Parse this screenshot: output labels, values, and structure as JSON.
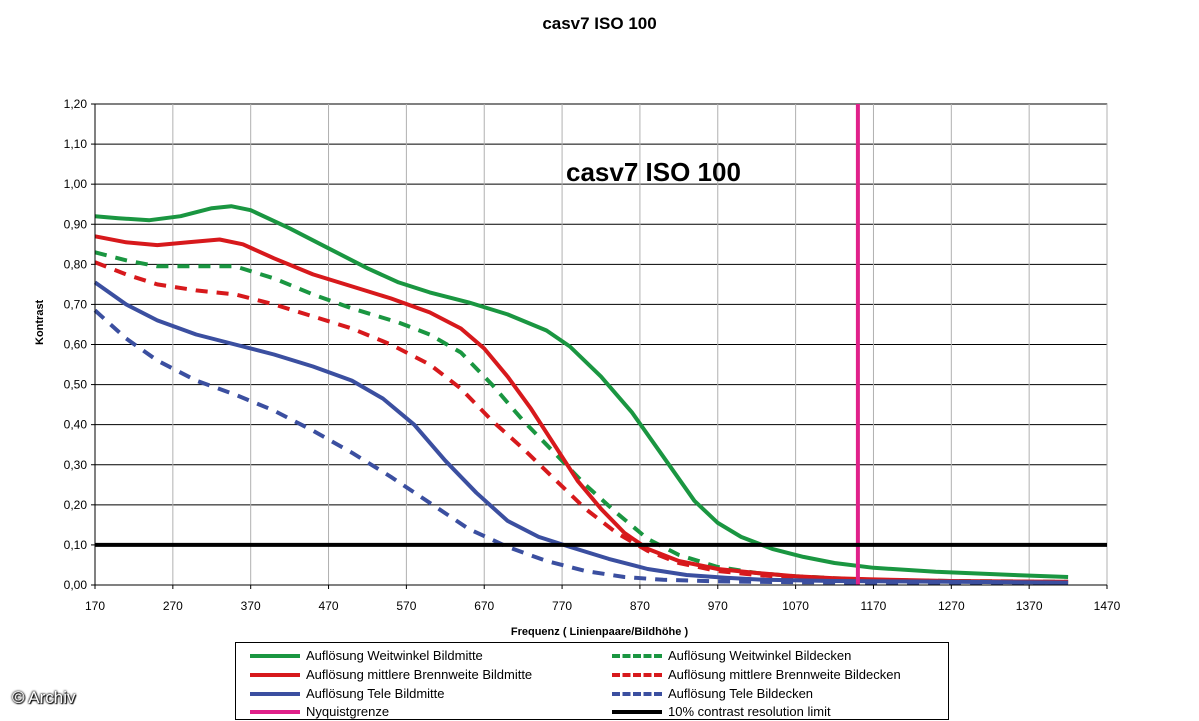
{
  "page": {
    "title": "casv7 ISO 100",
    "copyright": "© Archiv"
  },
  "chart_data": {
    "type": "line",
    "title": "casv7 ISO 100",
    "subtitle": "casv7 ISO 100",
    "xlabel": "Frequenz ( Linienpaare/Bildhöhe )",
    "ylabel": "Kontrast",
    "xlim": [
      170,
      1470
    ],
    "ylim": [
      0,
      1.2
    ],
    "xticks": [
      "170",
      "270",
      "370",
      "470",
      "570",
      "670",
      "770",
      "870",
      "970",
      "1070",
      "1170",
      "1270",
      "1370",
      "1470"
    ],
    "yticks": [
      "0,00",
      "0,10",
      "0,20",
      "0,30",
      "0,40",
      "0,50",
      "0,60",
      "0,70",
      "0,80",
      "0,90",
      "1,00",
      "1,10",
      "1,20"
    ],
    "grid": true,
    "legend_position": "bottom",
    "series": [
      {
        "name": "Auflösung Weitwinkel Bildmitte",
        "color": "#1a9641",
        "dash": "solid",
        "points": [
          [
            170,
            0.92
          ],
          [
            200,
            0.915
          ],
          [
            240,
            0.91
          ],
          [
            280,
            0.92
          ],
          [
            320,
            0.94
          ],
          [
            345,
            0.945
          ],
          [
            370,
            0.935
          ],
          [
            420,
            0.89
          ],
          [
            470,
            0.84
          ],
          [
            520,
            0.79
          ],
          [
            560,
            0.755
          ],
          [
            600,
            0.73
          ],
          [
            650,
            0.705
          ],
          [
            700,
            0.675
          ],
          [
            750,
            0.635
          ],
          [
            780,
            0.595
          ],
          [
            820,
            0.52
          ],
          [
            860,
            0.43
          ],
          [
            900,
            0.32
          ],
          [
            940,
            0.21
          ],
          [
            970,
            0.155
          ],
          [
            1000,
            0.12
          ],
          [
            1040,
            0.09
          ],
          [
            1080,
            0.07
          ],
          [
            1120,
            0.055
          ],
          [
            1170,
            0.043
          ],
          [
            1250,
            0.033
          ],
          [
            1350,
            0.025
          ],
          [
            1420,
            0.02
          ]
        ]
      },
      {
        "name": "Auflösung Weitwinkel Bildecken",
        "color": "#1a9641",
        "dash": "dashed",
        "points": [
          [
            170,
            0.83
          ],
          [
            210,
            0.81
          ],
          [
            250,
            0.795
          ],
          [
            300,
            0.795
          ],
          [
            350,
            0.795
          ],
          [
            400,
            0.765
          ],
          [
            450,
            0.725
          ],
          [
            500,
            0.69
          ],
          [
            560,
            0.655
          ],
          [
            600,
            0.625
          ],
          [
            640,
            0.58
          ],
          [
            680,
            0.5
          ],
          [
            720,
            0.41
          ],
          [
            760,
            0.33
          ],
          [
            800,
            0.25
          ],
          [
            840,
            0.18
          ],
          [
            880,
            0.115
          ],
          [
            920,
            0.075
          ],
          [
            970,
            0.045
          ],
          [
            1020,
            0.03
          ],
          [
            1070,
            0.022
          ],
          [
            1120,
            0.017
          ],
          [
            1170,
            0.013
          ],
          [
            1270,
            0.01
          ],
          [
            1420,
            0.008
          ]
        ]
      },
      {
        "name": "Auflösung mittlere Brennweite Bildmitte",
        "color": "#d7191c",
        "dash": "solid",
        "points": [
          [
            170,
            0.87
          ],
          [
            210,
            0.855
          ],
          [
            250,
            0.848
          ],
          [
            290,
            0.855
          ],
          [
            330,
            0.862
          ],
          [
            360,
            0.85
          ],
          [
            400,
            0.815
          ],
          [
            450,
            0.775
          ],
          [
            500,
            0.745
          ],
          [
            550,
            0.715
          ],
          [
            600,
            0.68
          ],
          [
            640,
            0.64
          ],
          [
            670,
            0.59
          ],
          [
            700,
            0.52
          ],
          [
            730,
            0.44
          ],
          [
            760,
            0.35
          ],
          [
            790,
            0.26
          ],
          [
            820,
            0.19
          ],
          [
            850,
            0.13
          ],
          [
            880,
            0.09
          ],
          [
            920,
            0.06
          ],
          [
            970,
            0.04
          ],
          [
            1020,
            0.03
          ],
          [
            1070,
            0.022
          ],
          [
            1120,
            0.017
          ],
          [
            1170,
            0.014
          ],
          [
            1270,
            0.01
          ],
          [
            1420,
            0.008
          ]
        ]
      },
      {
        "name": "Auflösung mittlere Brennweite Bildecken",
        "color": "#d7191c",
        "dash": "dashed",
        "points": [
          [
            170,
            0.805
          ],
          [
            210,
            0.775
          ],
          [
            250,
            0.75
          ],
          [
            300,
            0.735
          ],
          [
            350,
            0.725
          ],
          [
            400,
            0.7
          ],
          [
            450,
            0.67
          ],
          [
            500,
            0.64
          ],
          [
            550,
            0.6
          ],
          [
            600,
            0.55
          ],
          [
            640,
            0.49
          ],
          [
            680,
            0.41
          ],
          [
            720,
            0.34
          ],
          [
            760,
            0.265
          ],
          [
            800,
            0.19
          ],
          [
            840,
            0.13
          ],
          [
            880,
            0.085
          ],
          [
            920,
            0.055
          ],
          [
            970,
            0.035
          ],
          [
            1020,
            0.025
          ],
          [
            1070,
            0.018
          ],
          [
            1170,
            0.012
          ],
          [
            1270,
            0.009
          ],
          [
            1420,
            0.007
          ]
        ]
      },
      {
        "name": "Auflösung Tele Bildmitte",
        "color": "#3b4fa0",
        "dash": "solid",
        "points": [
          [
            170,
            0.755
          ],
          [
            210,
            0.7
          ],
          [
            250,
            0.66
          ],
          [
            300,
            0.625
          ],
          [
            350,
            0.6
          ],
          [
            400,
            0.575
          ],
          [
            450,
            0.545
          ],
          [
            500,
            0.51
          ],
          [
            540,
            0.465
          ],
          [
            580,
            0.4
          ],
          [
            620,
            0.31
          ],
          [
            660,
            0.23
          ],
          [
            700,
            0.16
          ],
          [
            740,
            0.12
          ],
          [
            780,
            0.095
          ],
          [
            830,
            0.065
          ],
          [
            880,
            0.04
          ],
          [
            930,
            0.025
          ],
          [
            980,
            0.018
          ],
          [
            1030,
            0.013
          ],
          [
            1120,
            0.01
          ],
          [
            1270,
            0.008
          ],
          [
            1420,
            0.006
          ]
        ]
      },
      {
        "name": "Auflösung Tele Bildecken",
        "color": "#3b4fa0",
        "dash": "dashed",
        "points": [
          [
            170,
            0.685
          ],
          [
            210,
            0.615
          ],
          [
            250,
            0.56
          ],
          [
            300,
            0.51
          ],
          [
            350,
            0.475
          ],
          [
            400,
            0.435
          ],
          [
            450,
            0.385
          ],
          [
            500,
            0.33
          ],
          [
            550,
            0.27
          ],
          [
            600,
            0.205
          ],
          [
            650,
            0.14
          ],
          [
            700,
            0.095
          ],
          [
            750,
            0.06
          ],
          [
            800,
            0.035
          ],
          [
            850,
            0.02
          ],
          [
            900,
            0.013
          ],
          [
            970,
            0.009
          ],
          [
            1070,
            0.007
          ],
          [
            1270,
            0.005
          ],
          [
            1420,
            0.004
          ]
        ]
      },
      {
        "name": "Nyquistgrenze",
        "color": "#e0218a",
        "dash": "solid",
        "points": [
          [
            1150,
            0
          ],
          [
            1150,
            1.2
          ]
        ]
      },
      {
        "name": "10% contrast resolution limit",
        "color": "#000000",
        "dash": "solid",
        "points": [
          [
            170,
            0.1
          ],
          [
            1470,
            0.1
          ]
        ]
      }
    ]
  }
}
